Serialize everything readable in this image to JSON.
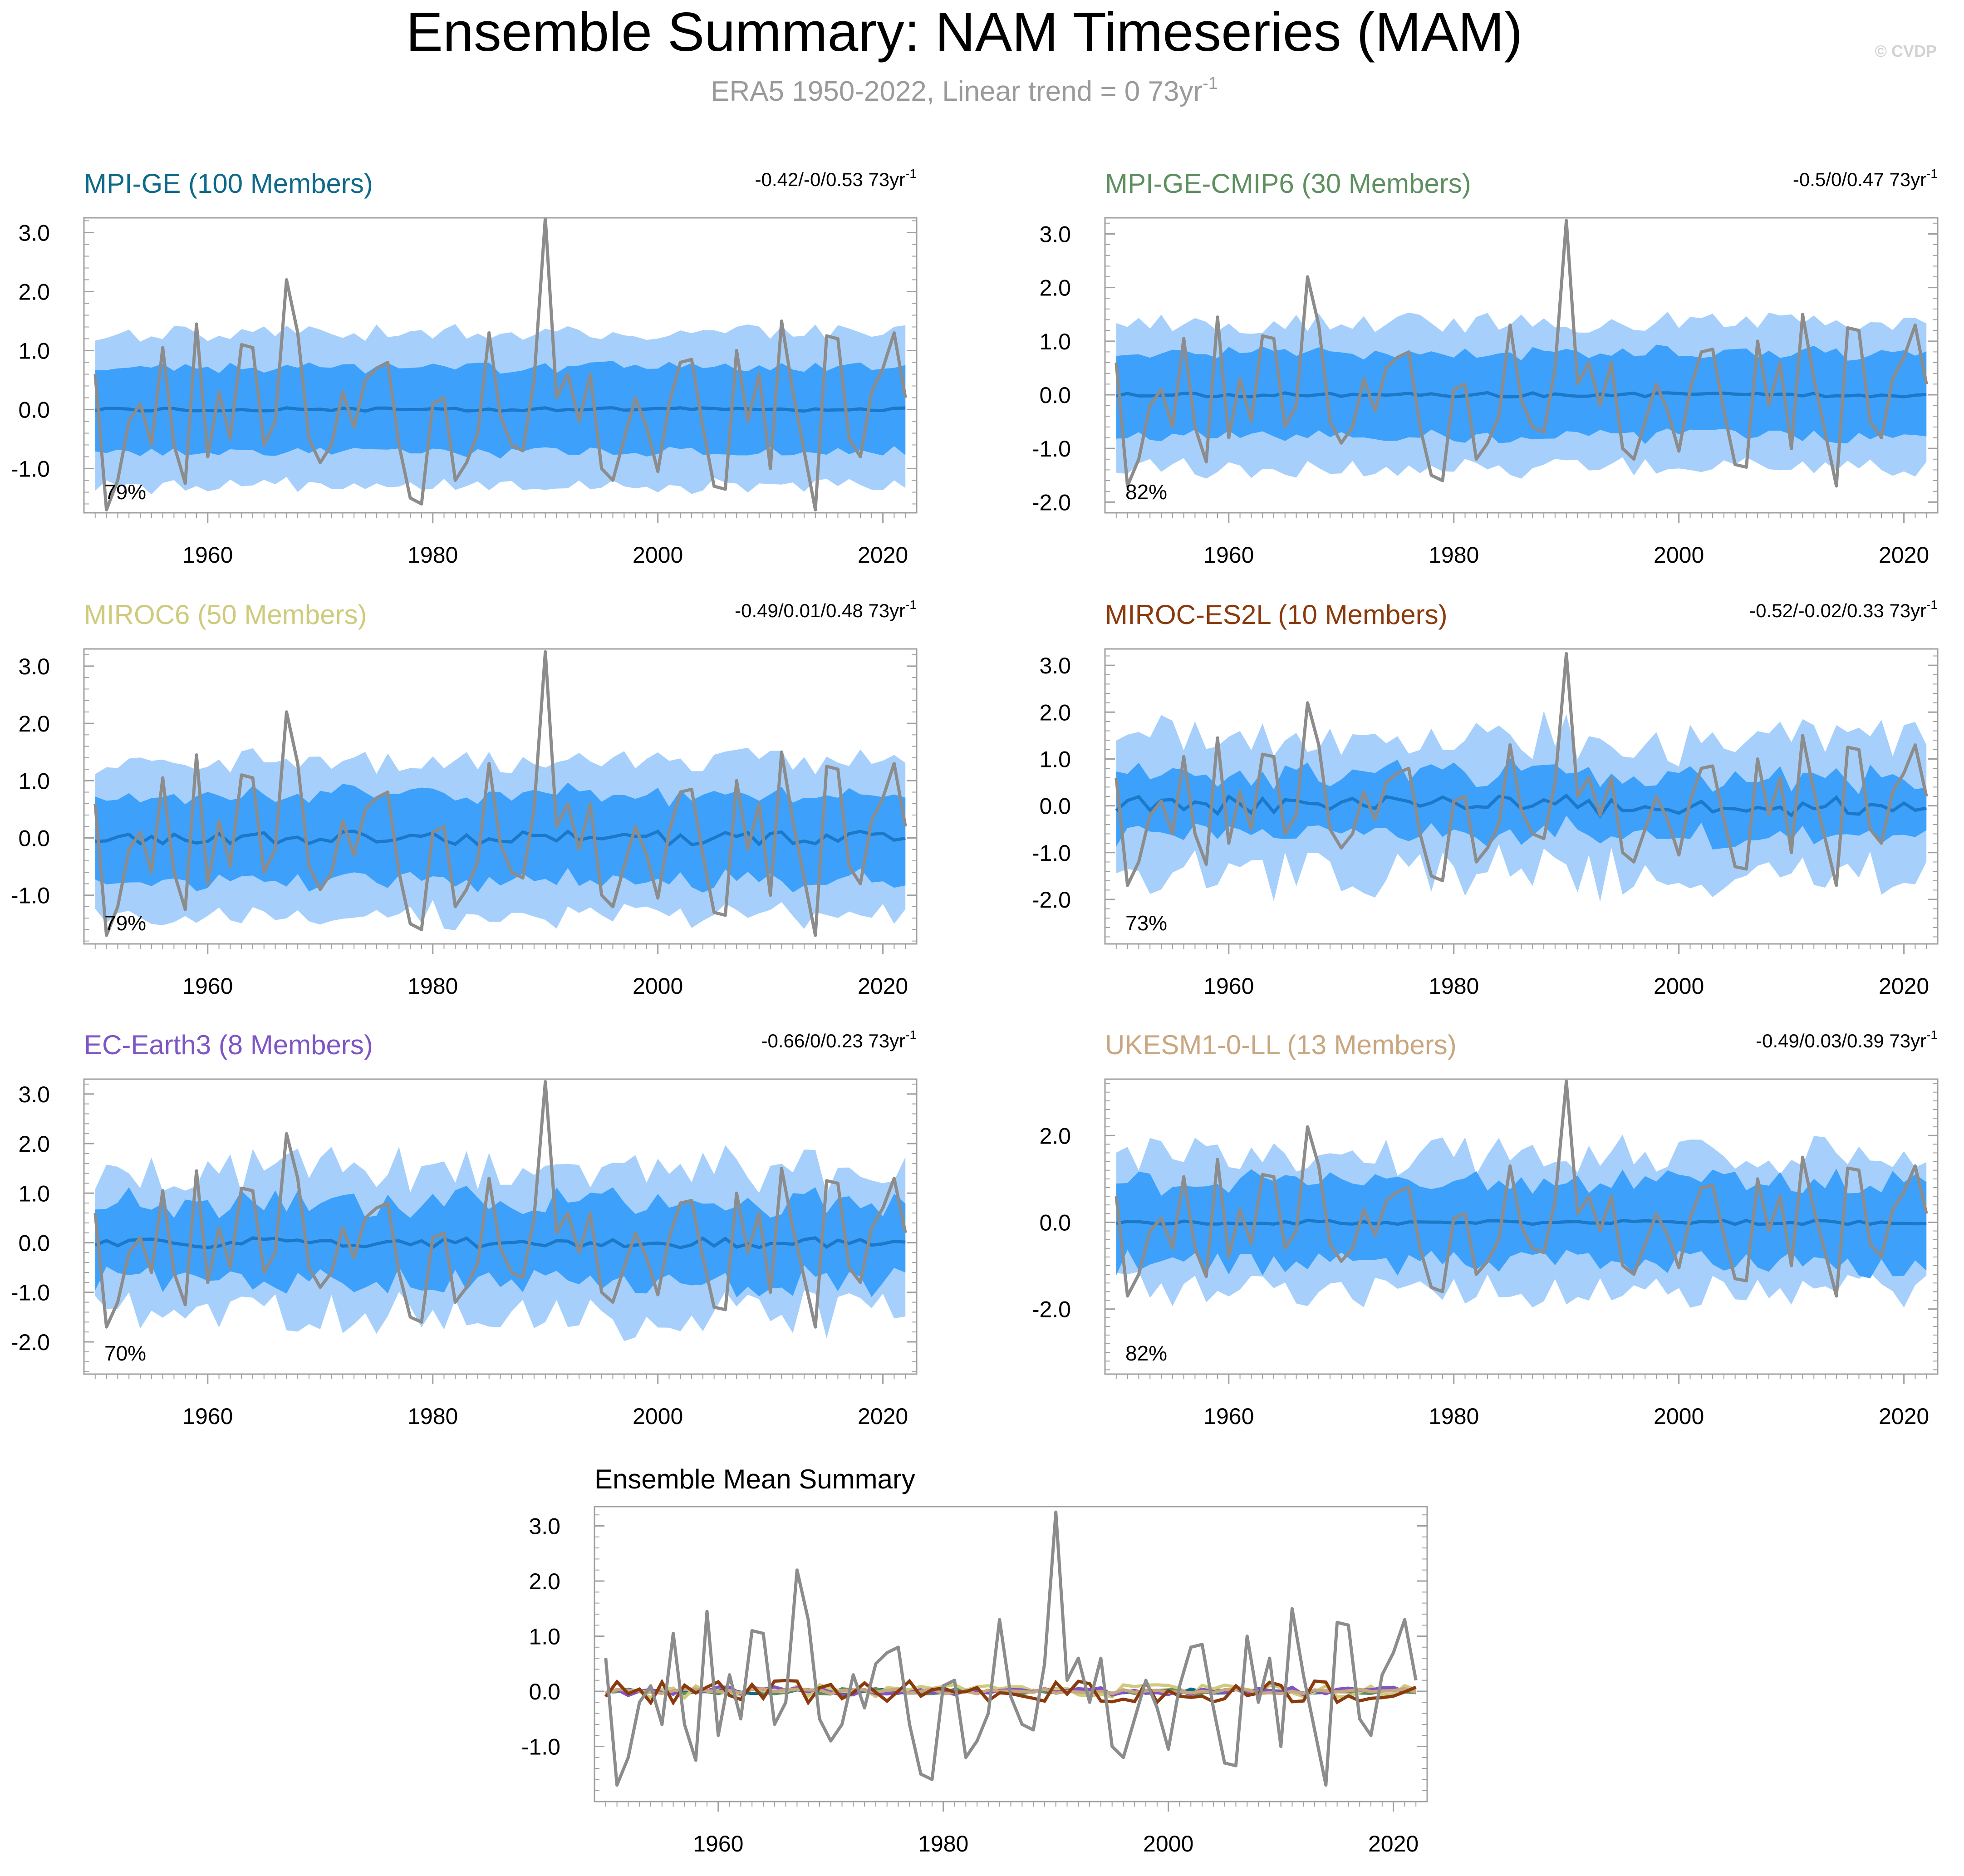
{
  "header": {
    "title": "Ensemble Summary: NAM Timeseries (MAM)",
    "subtitle": "ERA5 1950-2022, Linear trend = 0 73yr",
    "subtitle_sup": "-1",
    "watermark": "© CVDP"
  },
  "colors": {
    "band_outer": "#a6d0fb",
    "band_inner": "#3da1fb",
    "ens_mean_line": "#1c78c8",
    "obs_line": "#8c8c8c",
    "axis": "#a0a0a0"
  },
  "chart_data": [
    {
      "type": "area",
      "id": "mpi-ge",
      "title": "MPI-GE (100 Members)",
      "title_color": "#0f6a8a",
      "trend_label": "-0.42/-0/0.53 73yr",
      "trend_sup": "-1",
      "percent_label": "79%",
      "x_start": 1950,
      "x_end": 2022,
      "xlim": [
        1949,
        2023
      ],
      "ylim": [
        -1.75,
        3.25
      ],
      "yticks": [
        "3.0",
        "2.0",
        "1.0",
        "0.0",
        "-1.0"
      ],
      "ytick_values": [
        3,
        2,
        1,
        0,
        -1
      ],
      "xticks": [
        "1960",
        "1980",
        "2000",
        "2020"
      ],
      "xtick_values": [
        1960,
        1980,
        2000,
        2020
      ],
      "band_seed": 11,
      "band_inner": 0.72,
      "band_outer": 1.3,
      "band_var": 0.15,
      "mean_amp": 0.03
    },
    {
      "type": "area",
      "id": "mpi-ge-cmip6",
      "title": "MPI-GE-CMIP6 (30 Members)",
      "title_color": "#5e8f60",
      "trend_label": "-0.5/0/0.47 73yr",
      "trend_sup": "-1",
      "percent_label": "82%",
      "x_start": 1950,
      "x_end": 2022,
      "xlim": [
        1949,
        2023
      ],
      "ylim": [
        -2.2,
        3.3
      ],
      "yticks": [
        "3.0",
        "2.0",
        "1.0",
        "0.0",
        "-1.0",
        "-2.0"
      ],
      "ytick_values": [
        3,
        2,
        1,
        0,
        -1,
        -2
      ],
      "xticks": [
        "1960",
        "1980",
        "2000",
        "2020"
      ],
      "xtick_values": [
        1960,
        1980,
        2000,
        2020
      ],
      "band_seed": 23,
      "band_inner": 0.78,
      "band_outer": 1.35,
      "band_var": 0.2,
      "mean_amp": 0.04
    },
    {
      "type": "area",
      "id": "miroc6",
      "title": "MIROC6 (50 Members)",
      "title_color": "#cfcb7e",
      "trend_label": "-0.49/0.01/0.48 73yr",
      "trend_sup": "-1",
      "percent_label": "79%",
      "x_start": 1950,
      "x_end": 2022,
      "xlim": [
        1949,
        2023
      ],
      "ylim": [
        -1.85,
        3.3
      ],
      "yticks": [
        "3.0",
        "2.0",
        "1.0",
        "0.0",
        "-1.0"
      ],
      "ytick_values": [
        3,
        2,
        1,
        0,
        -1
      ],
      "xticks": [
        "1960",
        "1980",
        "2000",
        "2020"
      ],
      "xtick_values": [
        1960,
        1980,
        2000,
        2020
      ],
      "band_seed": 37,
      "band_inner": 0.75,
      "band_outer": 1.35,
      "band_var": 0.2,
      "mean_amp": 0.12
    },
    {
      "type": "area",
      "id": "miroc-es2l",
      "title": "MIROC-ES2L (10 Members)",
      "title_color": "#8a3a0c",
      "trend_label": "-0.52/-0.02/0.33 73yr",
      "trend_sup": "-1",
      "percent_label": "73%",
      "x_start": 1950,
      "x_end": 2022,
      "xlim": [
        1949,
        2023
      ],
      "ylim": [
        -2.95,
        3.35
      ],
      "yticks": [
        "3.0",
        "2.0",
        "1.0",
        "0.0",
        "-1.0",
        "-2.0"
      ],
      "ytick_values": [
        3,
        2,
        1,
        0,
        -1,
        -2
      ],
      "xticks": [
        "1960",
        "1980",
        "2000",
        "2020"
      ],
      "xtick_values": [
        1960,
        1980,
        2000,
        2020
      ],
      "band_seed": 51,
      "band_inner": 0.65,
      "band_outer": 1.45,
      "band_var": 0.45,
      "mean_amp": 0.22
    },
    {
      "type": "area",
      "id": "ec-earth3",
      "title": "EC-Earth3 (8 Members)",
      "title_color": "#7e55c4",
      "trend_label": "-0.66/0/0.23 73yr",
      "trend_sup": "-1",
      "percent_label": "70%",
      "x_start": 1950,
      "x_end": 2022,
      "xlim": [
        1949,
        2023
      ],
      "ylim": [
        -2.65,
        3.3
      ],
      "yticks": [
        "3.0",
        "2.0",
        "1.0",
        "0.0",
        "-1.0",
        "-2.0"
      ],
      "ytick_values": [
        3,
        2,
        1,
        0,
        -1,
        -2
      ],
      "xticks": [
        "1960",
        "1980",
        "2000",
        "2020"
      ],
      "xtick_values": [
        1960,
        1980,
        2000,
        2020
      ],
      "band_seed": 67,
      "band_inner": 0.8,
      "band_outer": 1.45,
      "band_var": 0.45,
      "mean_amp": 0.1
    },
    {
      "type": "area",
      "id": "ukesm1-0-ll",
      "title": "UKESM1-0-LL (13 Members)",
      "title_color": "#c9a67f",
      "trend_label": "-0.49/0.03/0.39 73yr",
      "trend_sup": "-1",
      "percent_label": "82%",
      "x_start": 1950,
      "x_end": 2022,
      "xlim": [
        1949,
        2023
      ],
      "ylim": [
        -3.5,
        3.3
      ],
      "yticks": [
        "2.0",
        "0.0",
        "-2.0"
      ],
      "ytick_values": [
        2,
        0,
        -2
      ],
      "xticks": [
        "1960",
        "1980",
        "2000",
        "2020"
      ],
      "xtick_values": [
        1960,
        1980,
        2000,
        2020
      ],
      "band_seed": 79,
      "band_inner": 0.95,
      "band_outer": 1.55,
      "band_var": 0.4,
      "mean_amp": 0.05
    },
    {
      "type": "line",
      "id": "ensemble-mean-summary",
      "title": "Ensemble Mean Summary",
      "title_color": "#000000",
      "x_start": 1950,
      "x_end": 2022,
      "xlim": [
        1949,
        2023
      ],
      "ylim": [
        -2.0,
        3.35
      ],
      "yticks": [
        "3.0",
        "2.0",
        "1.0",
        "0.0",
        "-1.0"
      ],
      "ytick_values": [
        3,
        2,
        1,
        0,
        -1
      ],
      "xticks": [
        "1960",
        "1980",
        "2000",
        "2020"
      ],
      "xtick_values": [
        1960,
        1980,
        2000,
        2020
      ],
      "series": [
        {
          "name": "MPI-GE",
          "color": "#0f6a8a",
          "seed": 101,
          "amp": 0.04
        },
        {
          "name": "MPI-GE-CMIP6",
          "color": "#5e8f60",
          "seed": 102,
          "amp": 0.05
        },
        {
          "name": "MIROC6",
          "color": "#cfcb7e",
          "seed": 103,
          "amp": 0.12
        },
        {
          "name": "EC-Earth3",
          "color": "#7e55c4",
          "seed": 104,
          "amp": 0.08
        },
        {
          "name": "UKESM1-0-LL",
          "color": "#c9a67f",
          "seed": 105,
          "amp": 0.05
        },
        {
          "name": "MIROC-ES2L",
          "color": "#8a3a0c",
          "seed": 106,
          "amp": 0.22
        }
      ]
    }
  ],
  "obs_series": {
    "name": "ERA5",
    "years_start": 1950,
    "values": [
      0.6,
      -1.7,
      -1.2,
      -0.2,
      0.1,
      -0.6,
      1.05,
      -0.6,
      -1.25,
      1.45,
      -0.8,
      0.3,
      -0.5,
      1.1,
      1.05,
      -0.6,
      -0.2,
      2.2,
      1.3,
      -0.5,
      -0.9,
      -0.6,
      0.3,
      -0.3,
      0.5,
      0.7,
      0.8,
      -0.6,
      -1.5,
      -1.6,
      0.1,
      0.2,
      -1.2,
      -0.9,
      -0.4,
      1.3,
      -0.1,
      -0.6,
      -0.7,
      0.5,
      3.25,
      0.2,
      0.6,
      -0.2,
      0.6,
      -1.0,
      -1.2,
      -0.5,
      0.2,
      -0.3,
      -1.05,
      0.1,
      0.8,
      0.85,
      -0.3,
      -1.3,
      -1.35,
      1.0,
      -0.2,
      0.6,
      -1.0,
      1.5,
      0.3,
      -0.7,
      -1.7,
      1.25,
      1.2,
      -0.5,
      -0.8,
      0.3,
      0.7,
      1.3,
      0.2
    ]
  }
}
